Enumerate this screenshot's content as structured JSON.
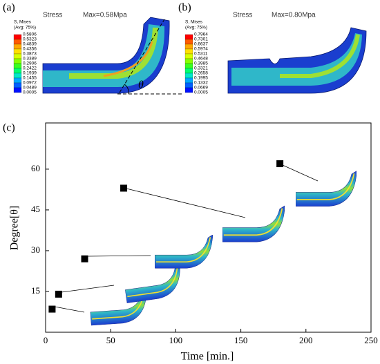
{
  "panels": {
    "a": {
      "label": "(a)",
      "stress": "Stress",
      "max": "Max=0.58Mpa",
      "legend_title": "S, Mises",
      "legend_avg": "(Avg: 75%)",
      "angle": "θ",
      "legend_values": [
        "0.5806",
        "0.5323",
        "0.4839",
        "0.4356",
        "0.3873",
        "0.3389",
        "0.2906",
        "0.2422",
        "0.1939",
        "0.1455",
        "0.0972",
        "0.0489",
        "0.0005"
      ]
    },
    "b": {
      "label": "(b)",
      "stress": "Stress",
      "max": "Max=0.80Mpa",
      "legend_title": "S, Mises",
      "legend_avg": "(Avg: 75%)",
      "legend_values": [
        "0.7964",
        "0.7301",
        "0.6637",
        "0.5974",
        "0.5311",
        "0.4648",
        "0.3985",
        "0.3321",
        "0.2658",
        "0.1995",
        "0.1332",
        "0.0669",
        "0.0005"
      ]
    }
  },
  "chart_data": {
    "type": "scatter",
    "panel_label": "(c)",
    "x_label": "Time [min.]",
    "y_label": "Degree[θ]",
    "x": [
      5,
      10,
      30,
      60,
      180
    ],
    "values": [
      8.5,
      14,
      27,
      53,
      62
    ],
    "color": "#000000",
    "xlim": [
      0,
      250
    ],
    "ylim": [
      0,
      77
    ],
    "xticks": [
      0,
      50,
      100,
      150,
      200,
      250
    ],
    "yticks": [
      15,
      30,
      45,
      60
    ]
  }
}
